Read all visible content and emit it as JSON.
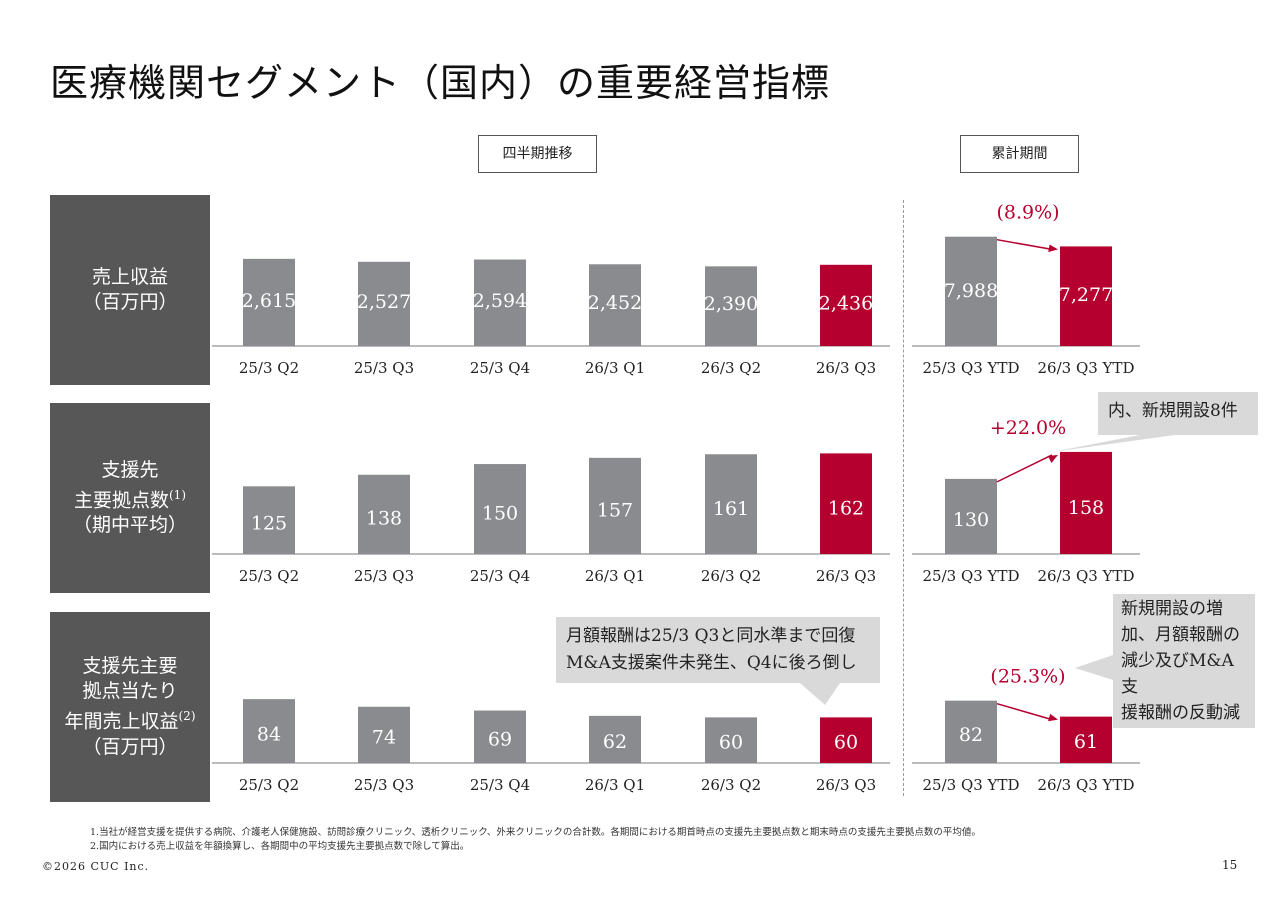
{
  "title": "医療機関セグメント（国内）の重要経営指標",
  "headers": {
    "quarterly": "四半期推移",
    "ytd": "累計期間"
  },
  "rows": [
    {
      "label_lines": [
        "売上収益",
        "（百万円）"
      ]
    },
    {
      "label_lines": [
        "支援先",
        "主要拠点数",
        "（期中平均）"
      ],
      "sup": "(1)"
    },
    {
      "label_lines": [
        "支援先主要",
        "拠点当たり",
        "年間売上収益",
        "（百万円）"
      ],
      "sup": "(2)"
    }
  ],
  "colors": {
    "gray": "#898b8e",
    "accent": "#b5002f",
    "label_bg": "#575757",
    "callout_bg": "#d9d9d9"
  },
  "chart_data": [
    {
      "type": "bar",
      "name": "売上収益（百万円）",
      "categories": [
        "25/3 Q2",
        "25/3 Q3",
        "25/3 Q4",
        "26/3 Q1",
        "26/3 Q2",
        "26/3 Q3"
      ],
      "values": [
        2615,
        2527,
        2594,
        2452,
        2390,
        2436
      ],
      "labels": [
        "2,615",
        "2,527",
        "2,594",
        "2,452",
        "2,390",
        "2,436"
      ],
      "ylim": [
        0,
        3900
      ]
    },
    {
      "type": "bar",
      "categories": [
        "25/3 Q3 YTD",
        "26/3 Q3 YTD"
      ],
      "values": [
        7988,
        7277
      ],
      "labels": [
        "7,988",
        "7,277"
      ],
      "change": "(8.9%)",
      "ylim": [
        0,
        9500
      ]
    },
    {
      "type": "bar",
      "name": "支援先主要拠点数（期中平均）",
      "categories": [
        "25/3 Q2",
        "25/3 Q3",
        "25/3 Q4",
        "26/3 Q1",
        "26/3 Q2",
        "26/3 Q3"
      ],
      "values": [
        125,
        138,
        150,
        157,
        161,
        162
      ],
      "labels": [
        "125",
        "138",
        "150",
        "157",
        "161",
        "162"
      ],
      "ylim": [
        49,
        195
      ]
    },
    {
      "type": "bar",
      "categories": [
        "25/3 Q3 YTD",
        "26/3 Q3 YTD"
      ],
      "values": [
        130,
        158
      ],
      "labels": [
        "130",
        "158"
      ],
      "change": "+22.0%",
      "ylim": [
        52,
        187
      ]
    },
    {
      "type": "bar",
      "name": "支援先主要拠点当たり年間売上収益（百万円）",
      "categories": [
        "25/3 Q2",
        "25/3 Q3",
        "25/3 Q4",
        "26/3 Q1",
        "26/3 Q2",
        "26/3 Q3"
      ],
      "values": [
        84,
        74,
        69,
        62,
        60,
        60
      ],
      "labels": [
        "84",
        "74",
        "69",
        "62",
        "60",
        "60"
      ],
      "ylim": [
        0,
        171
      ]
    },
    {
      "type": "bar",
      "categories": [
        "25/3 Q3 YTD",
        "26/3 Q3 YTD"
      ],
      "values": [
        82,
        61
      ],
      "labels": [
        "82",
        "61"
      ],
      "change": "(25.3%)",
      "ylim": [
        0,
        171
      ]
    }
  ],
  "callouts": {
    "new_sites": "内、新規開設8件",
    "quarterly_note": [
      "月額報酬は25/3 Q3と同水準まで回復",
      "M&A支援案件未発生、Q4に後ろ倒し"
    ],
    "ytd_note": [
      "新規開設の増",
      "加、月額報酬の",
      "減少及びM&A支",
      "援報酬の反動減"
    ]
  },
  "footnotes": [
    "1.当社が経営支援を提供する病院、介護老人保健施設、訪問診療クリニック、透析クリニック、外来クリニックの合計数。各期間における期首時点の支援先主要拠点数と期末時点の支援先主要拠点数の平均値。",
    "2.国内における売上収益を年額換算し、各期間中の平均支援先主要拠点数で除して算出。"
  ],
  "copyright": "©2026 CUC Inc.",
  "page_number": "15"
}
